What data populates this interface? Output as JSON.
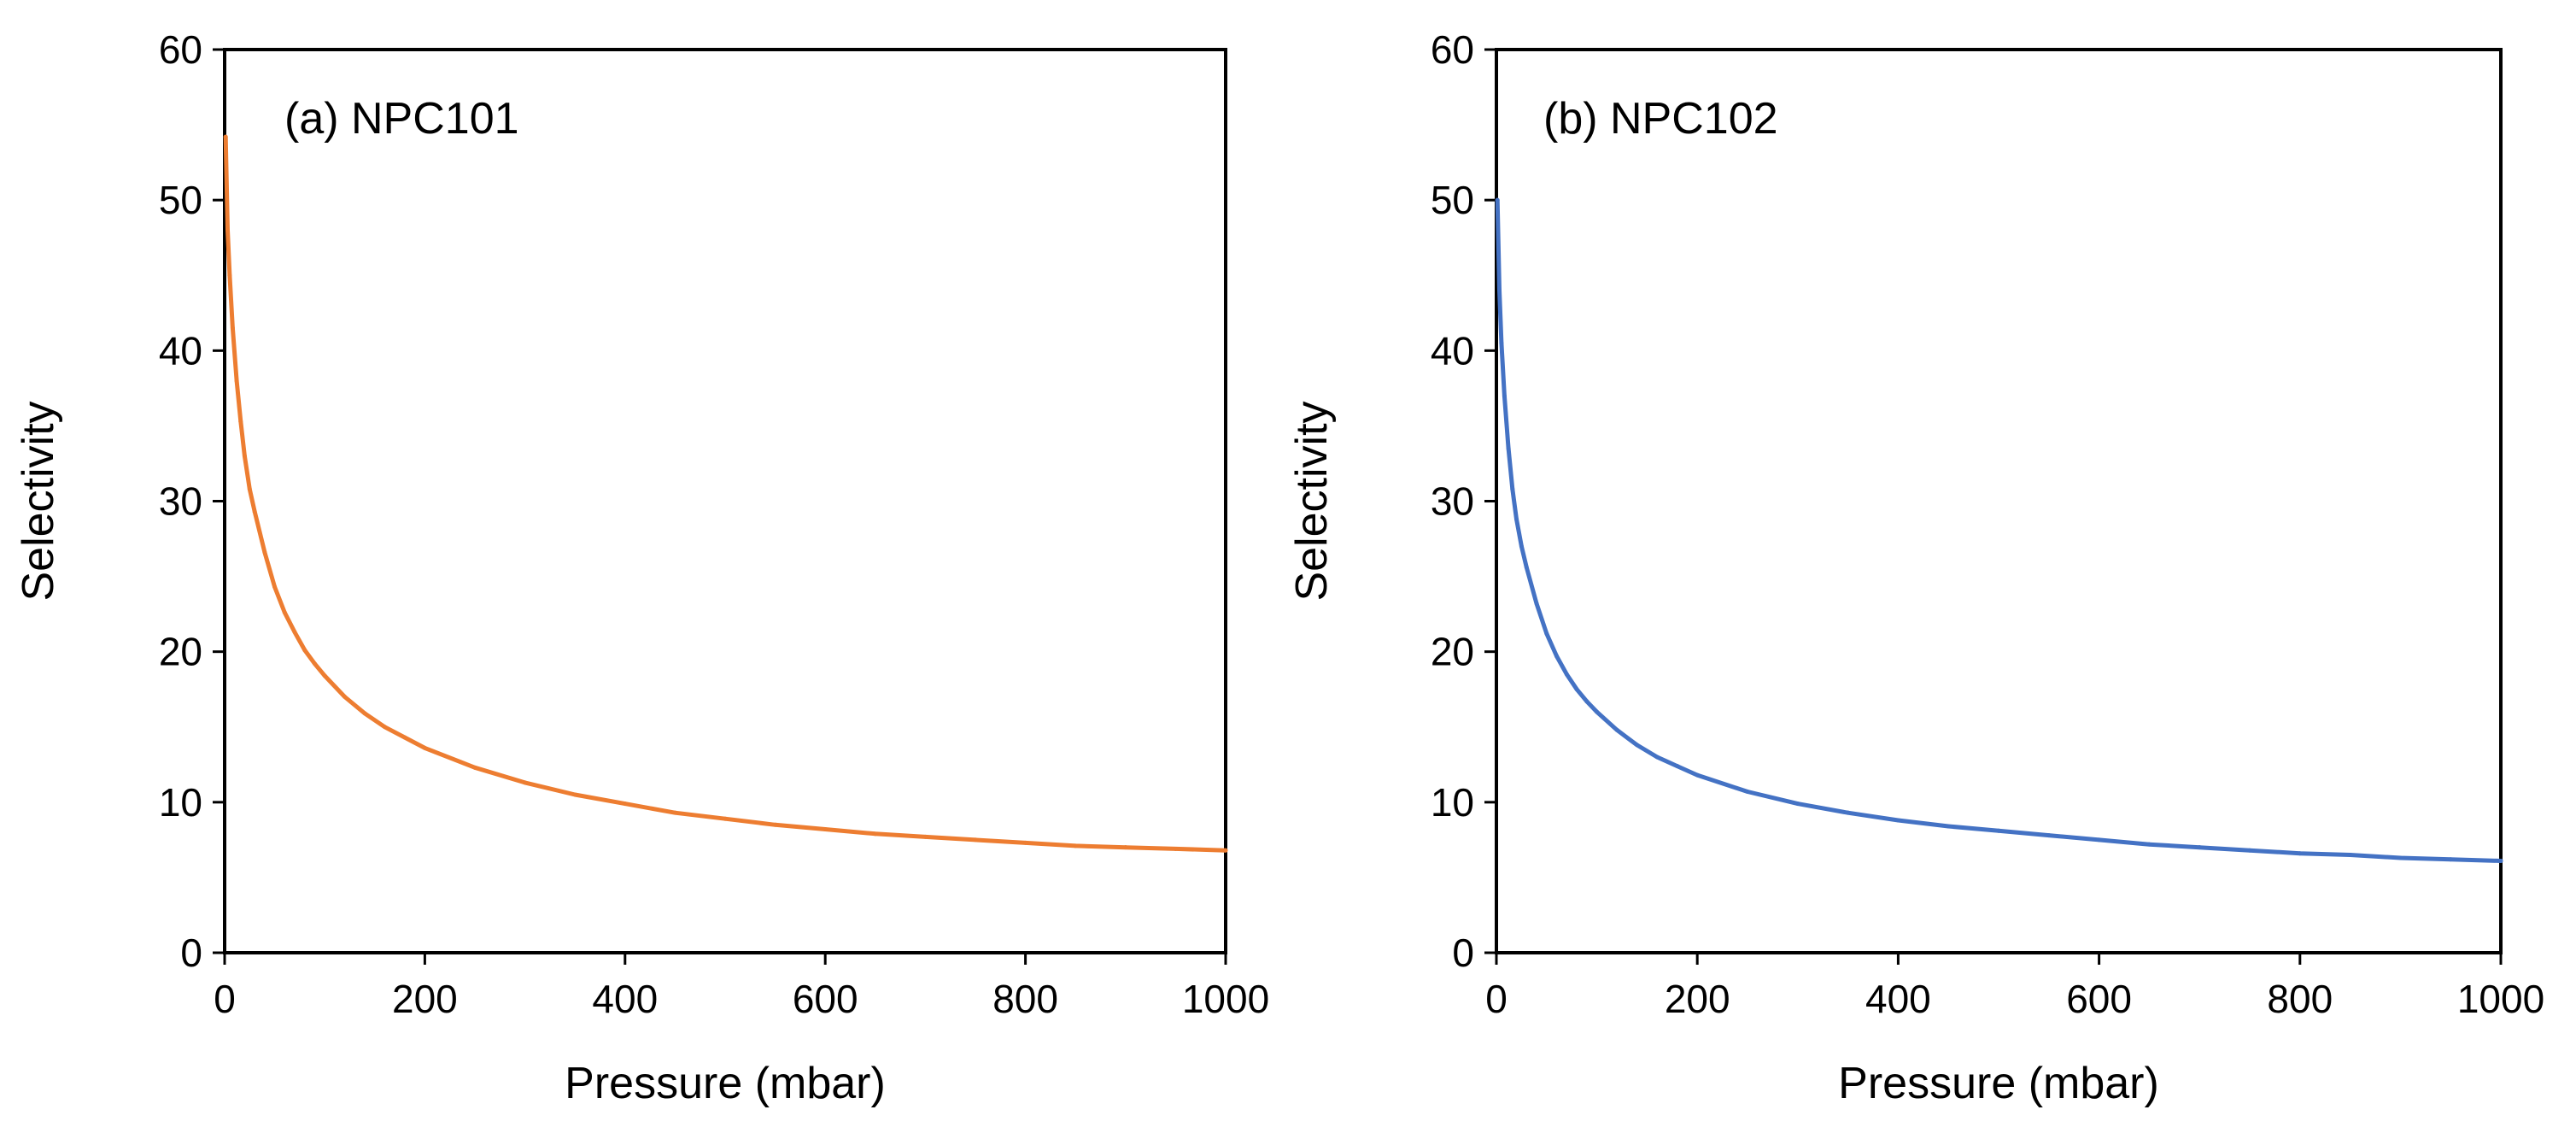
{
  "chart_data": [
    {
      "type": "line",
      "panel_label": "(a) NPC101",
      "xlabel": "Pressure (mbar)",
      "ylabel": "Selectivity",
      "xlim": [
        0,
        1000
      ],
      "ylim": [
        0,
        60
      ],
      "x_ticks": [
        0,
        200,
        400,
        600,
        800,
        1000
      ],
      "y_ticks": [
        0,
        10,
        20,
        30,
        40,
        50,
        60
      ],
      "grid": false,
      "color": "#ED7D31",
      "series": [
        {
          "x": [
            1,
            3,
            5,
            8,
            12,
            16,
            20,
            25,
            30,
            40,
            50,
            60,
            70,
            80,
            90,
            100,
            120,
            140,
            160,
            180,
            200,
            250,
            300,
            350,
            400,
            450,
            500,
            550,
            600,
            650,
            700,
            750,
            800,
            850,
            900,
            950,
            1000
          ],
          "values": [
            54.2,
            48.0,
            45.0,
            41.5,
            38.0,
            35.3,
            33.0,
            30.8,
            29.3,
            26.6,
            24.3,
            22.6,
            21.3,
            20.1,
            19.2,
            18.4,
            17.0,
            15.9,
            15.0,
            14.3,
            13.6,
            12.3,
            11.3,
            10.5,
            9.9,
            9.3,
            8.9,
            8.5,
            8.2,
            7.9,
            7.7,
            7.5,
            7.3,
            7.1,
            7.0,
            6.9,
            6.8
          ]
        }
      ]
    },
    {
      "type": "line",
      "panel_label": "(b) NPC102",
      "xlabel": "Pressure (mbar)",
      "ylabel": "Selectivity",
      "xlim": [
        0,
        1000
      ],
      "ylim": [
        0,
        60
      ],
      "x_ticks": [
        0,
        200,
        400,
        600,
        800,
        1000
      ],
      "y_ticks": [
        0,
        10,
        20,
        30,
        40,
        50,
        60
      ],
      "grid": false,
      "color": "#4472C4",
      "series": [
        {
          "x": [
            1,
            3,
            5,
            8,
            12,
            16,
            20,
            25,
            30,
            40,
            50,
            60,
            70,
            80,
            90,
            100,
            120,
            140,
            160,
            180,
            200,
            250,
            300,
            350,
            400,
            450,
            500,
            550,
            600,
            650,
            700,
            750,
            800,
            850,
            900,
            950,
            1000
          ],
          "values": [
            50.0,
            44.0,
            40.5,
            37.0,
            33.5,
            30.8,
            28.8,
            27.0,
            25.6,
            23.2,
            21.2,
            19.7,
            18.5,
            17.5,
            16.7,
            16.0,
            14.8,
            13.8,
            13.0,
            12.4,
            11.8,
            10.7,
            9.9,
            9.3,
            8.8,
            8.4,
            8.1,
            7.8,
            7.5,
            7.2,
            7.0,
            6.8,
            6.6,
            6.5,
            6.3,
            6.2,
            6.1
          ]
        }
      ]
    }
  ]
}
